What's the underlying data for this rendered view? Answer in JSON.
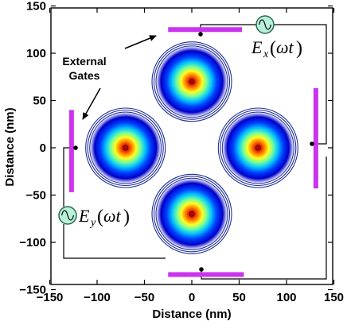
{
  "axes": {
    "xlabel": "Distance (nm)",
    "ylabel": "Distance (nm)",
    "xlim": [
      -150,
      150
    ],
    "ylim": [
      -150,
      150
    ],
    "x_ticks": [
      "−150",
      "−100",
      "−50",
      "0",
      "50",
      "100",
      "150"
    ],
    "y_ticks": [
      "150",
      "100",
      "50",
      "0",
      "−50",
      "−100",
      "−150"
    ]
  },
  "annotation": {
    "line1": "External",
    "line2": "Gates"
  },
  "sources": {
    "ex_symbol": "E",
    "ex_sub": "x",
    "ex_arg": "ωt",
    "ey_symbol": "E",
    "ey_sub": "y",
    "ey_arg": "ωt"
  },
  "dots": [
    {
      "x": -70,
      "y": 0
    },
    {
      "x": 70,
      "y": 0
    },
    {
      "x": 0,
      "y": 70
    },
    {
      "x": 0,
      "y": -70
    }
  ],
  "gates": [
    {
      "orientation": "horizontal",
      "x1": -25,
      "x2": 53,
      "y": 125
    },
    {
      "orientation": "horizontal",
      "x1": -25,
      "x2": 55,
      "y": -134
    },
    {
      "orientation": "vertical",
      "x": -127,
      "y1": -47,
      "y2": 40
    },
    {
      "orientation": "vertical",
      "x": 131,
      "y1": -43,
      "y2": 63
    }
  ],
  "colors": {
    "gate": "#cc33ee",
    "source_fill": "#b8f0d8",
    "source_stroke": "#2a6a50",
    "ring": "#1f2f9a",
    "dot_gradient": [
      "#a00000",
      "#e01000",
      "#ff8000",
      "#ffff20",
      "#70ffa0",
      "#00c0ff",
      "#0040ff",
      "#0000c8",
      "#ffffff"
    ]
  }
}
